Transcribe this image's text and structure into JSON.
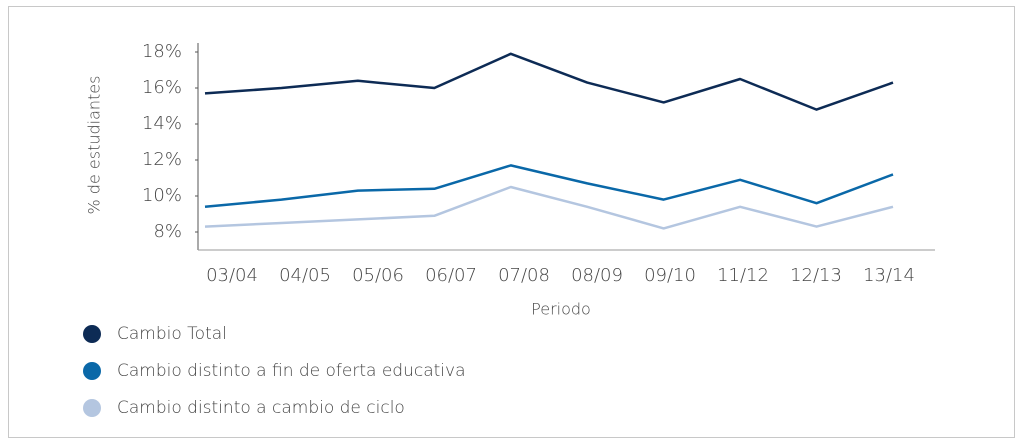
{
  "chart_data": {
    "type": "line",
    "y_label": "% de estudiantes",
    "x_label": "Periodo",
    "categories": [
      "03/04",
      "04/05",
      "05/06",
      "06/07",
      "07/08",
      "08/09",
      "09/10",
      "11/12",
      "12/13",
      "13/14"
    ],
    "series": [
      {
        "name": "Cambio Total",
        "color": "#0d2b55",
        "values": [
          15.7,
          16.0,
          16.4,
          16.0,
          17.9,
          16.3,
          15.2,
          16.5,
          14.8,
          16.3
        ]
      },
      {
        "name": "Cambio distinto a fin de oferta educativa",
        "color": "#0a68a8",
        "values": [
          9.4,
          9.8,
          10.3,
          10.4,
          11.7,
          10.7,
          9.8,
          10.9,
          9.6,
          11.2
        ]
      },
      {
        "name": "Cambio distinto a cambio de ciclo",
        "color": "#b4c6e0",
        "values": [
          8.3,
          8.5,
          8.7,
          8.9,
          10.5,
          9.4,
          8.2,
          9.4,
          8.3,
          9.4
        ]
      }
    ],
    "ylim": [
      7,
      18.5
    ],
    "yticks": [
      {
        "value": 8,
        "label": "8%"
      },
      {
        "value": 10,
        "label": "10%"
      },
      {
        "value": 12,
        "label": "12%"
      },
      {
        "value": 14,
        "label": "14%"
      },
      {
        "value": 16,
        "label": "16%"
      },
      {
        "value": 18,
        "label": "18%"
      }
    ],
    "grid": false
  }
}
